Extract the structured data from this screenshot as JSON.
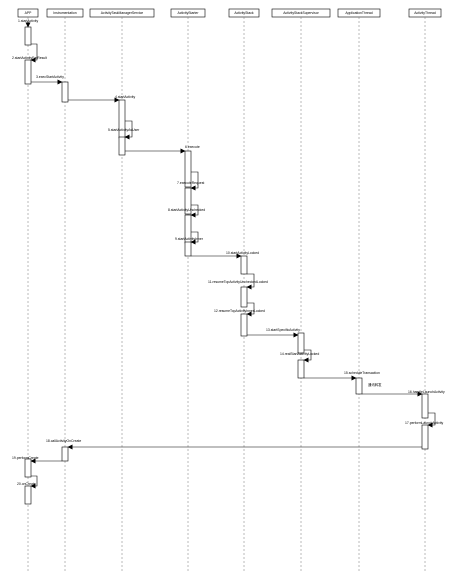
{
  "participants": [
    {
      "id": "app",
      "label": "APP"
    },
    {
      "id": "inst",
      "label": "Instrumentation"
    },
    {
      "id": "atms",
      "label": "ActivityTaskManagerService"
    },
    {
      "id": "starter",
      "label": "ActivityStarter"
    },
    {
      "id": "stack",
      "label": "ActivityStack"
    },
    {
      "id": "supervisor",
      "label": "ActivityStackSupervisor"
    },
    {
      "id": "appthread",
      "label": "ApplicationThread"
    },
    {
      "id": "athread",
      "label": "ActivityThread"
    }
  ],
  "messages": [
    {
      "label": "1.startActivity",
      "from": "app",
      "to": "app"
    },
    {
      "label": "2.startActivityForResult",
      "from": "app",
      "to": "app"
    },
    {
      "label": "3.execStartActivity",
      "from": "app",
      "to": "inst"
    },
    {
      "label": "4.startActivity",
      "from": "inst",
      "to": "atms"
    },
    {
      "label": "5.startActivityAsUser",
      "from": "atms",
      "to": "atms"
    },
    {
      "label": "6.execute",
      "from": "atms",
      "to": "starter"
    },
    {
      "label": "7.executeRequest",
      "from": "starter",
      "to": "starter"
    },
    {
      "label": "8.startActivityUnchecked",
      "from": "starter",
      "to": "starter"
    },
    {
      "label": "9.startActivityInner",
      "from": "starter",
      "to": "starter"
    },
    {
      "label": "10.startActivityLocked",
      "from": "starter",
      "to": "stack"
    },
    {
      "label": "11.resumeTopActivityUncheckedLocked",
      "from": "stack",
      "to": "stack"
    },
    {
      "label": "12.resumeTopActivityInnerLocked",
      "from": "stack",
      "to": "stack"
    },
    {
      "label": "13.startSpecificActivity",
      "from": "stack",
      "to": "supervisor"
    },
    {
      "label": "14.realStartActivityLocked",
      "from": "supervisor",
      "to": "supervisor"
    },
    {
      "label": "15.scheduleTransaction",
      "from": "supervisor",
      "to": "appthread"
    },
    {
      "label": "16.handleLaunchActivity",
      "from": "appthread",
      "to": "athread"
    },
    {
      "label": "17.performLaunchActivity",
      "from": "athread",
      "to": "athread"
    },
    {
      "label": "18.callActivityOnCreate",
      "from": "athread",
      "to": "inst"
    },
    {
      "label": "19.performCreate",
      "from": "inst",
      "to": "app"
    },
    {
      "label": "20.onCreate",
      "from": "app",
      "to": "app"
    }
  ],
  "notes": [
    {
      "label": "通讯转发"
    }
  ]
}
